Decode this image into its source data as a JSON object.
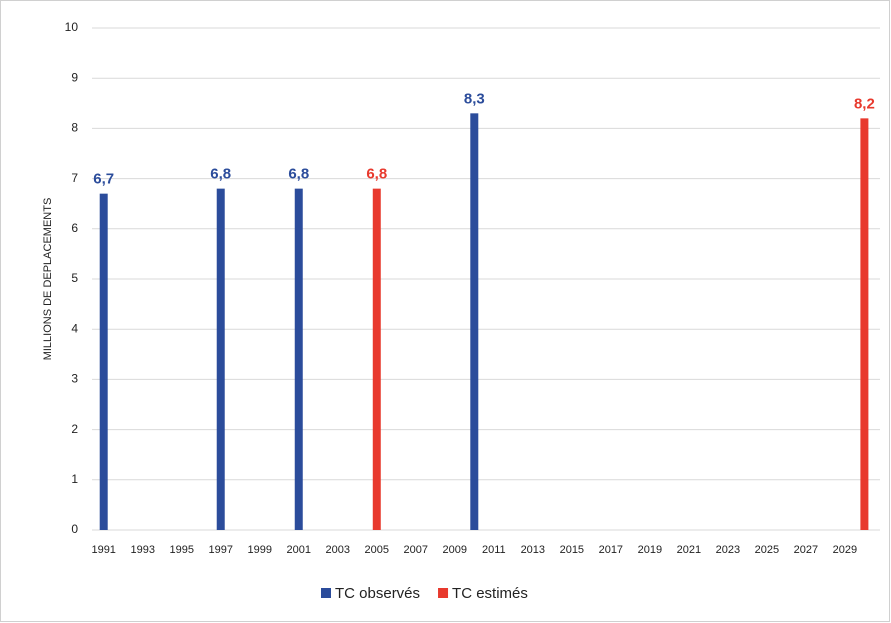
{
  "chart_data": {
    "type": "bar",
    "y_label": "MILLIONS DE DEPLACEMENTS",
    "series": [
      {
        "name": "TC observés",
        "color": "#2b4c9b",
        "x": [
          1991,
          1997,
          2001,
          2010
        ],
        "values": [
          6.7,
          6.8,
          6.8,
          8.3
        ],
        "value_labels": [
          "6,7",
          "6,8",
          "6,8",
          "8,3"
        ]
      },
      {
        "name": "TC estimés",
        "color": "#e8392d",
        "x": [
          2005,
          2030
        ],
        "values": [
          6.8,
          8.2
        ],
        "value_labels": [
          "6,8",
          "8,2"
        ]
      }
    ],
    "xlim": [
      1990.4,
      2030.8
    ],
    "xticks": [
      1991,
      1993,
      1995,
      1997,
      1999,
      2001,
      2003,
      2005,
      2007,
      2009,
      2011,
      2013,
      2015,
      2017,
      2019,
      2021,
      2023,
      2025,
      2027,
      2029
    ],
    "ylim": [
      0,
      10
    ],
    "yticks": [
      0,
      1,
      2,
      3,
      4,
      5,
      6,
      7,
      8,
      9,
      10
    ],
    "grid": true,
    "legend": "bottom"
  }
}
